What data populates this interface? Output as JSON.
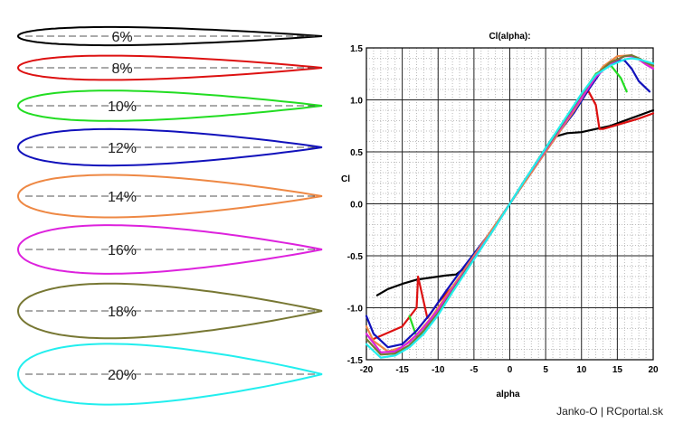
{
  "airfoils": [
    {
      "label": "6%",
      "thickness": 0.06,
      "color": "#000000"
    },
    {
      "label": "8%",
      "thickness": 0.08,
      "color": "#dd1111"
    },
    {
      "label": "10%",
      "thickness": 0.1,
      "color": "#22dd22"
    },
    {
      "label": "12%",
      "thickness": 0.12,
      "color": "#1111bb"
    },
    {
      "label": "14%",
      "thickness": 0.14,
      "color": "#ee8844"
    },
    {
      "label": "16%",
      "thickness": 0.16,
      "color": "#dd22dd"
    },
    {
      "label": "18%",
      "thickness": 0.18,
      "color": "#777733"
    },
    {
      "label": "20%",
      "thickness": 0.2,
      "color": "#22eeee"
    }
  ],
  "credit": "Janko-O | RCportal.sk",
  "chart_data": {
    "type": "line",
    "title": "Cl(alpha):",
    "xlabel": "alpha",
    "ylabel": "Cl",
    "xlim": [
      -20,
      20
    ],
    "ylim": [
      -1.5,
      1.5
    ],
    "xticks": [
      -20,
      -15,
      -10,
      -5,
      0,
      5,
      10,
      15,
      20
    ],
    "yticks": [
      -1.5,
      -1.0,
      -0.5,
      0.0,
      0.5,
      1.0,
      1.5
    ],
    "ytick_labels": [
      "-1.5",
      "-1.0",
      "-0.5",
      "0.0",
      "0.5",
      "1.0",
      "1.5"
    ],
    "grid": true,
    "series": [
      {
        "color": "#000000",
        "x": [
          -18.5,
          -17,
          -15,
          -13,
          -11,
          -9,
          -7.5,
          -6,
          -4,
          -2,
          0,
          2,
          4,
          6,
          8,
          10,
          12,
          14,
          16,
          18,
          20
        ],
        "y": [
          -0.88,
          -0.82,
          -0.77,
          -0.73,
          -0.71,
          -0.69,
          -0.68,
          -0.6,
          -0.42,
          -0.21,
          0.0,
          0.21,
          0.43,
          0.64,
          0.68,
          0.69,
          0.72,
          0.75,
          0.8,
          0.85,
          0.9
        ]
      },
      {
        "color": "#dd1111",
        "x": [
          -19,
          -17,
          -15,
          -13,
          -12.8,
          -11.5,
          -10,
          -8,
          -6,
          -4,
          -2,
          0,
          2,
          4,
          6,
          8,
          10,
          11,
          12,
          12.5,
          13,
          14,
          16,
          18,
          20
        ],
        "y": [
          -1.3,
          -1.24,
          -1.18,
          -1.0,
          -0.7,
          -1.1,
          -0.95,
          -0.8,
          -0.61,
          -0.42,
          -0.21,
          0.0,
          0.21,
          0.42,
          0.63,
          0.84,
          1.05,
          1.08,
          0.95,
          0.72,
          0.72,
          0.74,
          0.78,
          0.82,
          0.87
        ]
      },
      {
        "color": "#22dd22",
        "x": [
          -14,
          -13,
          -12,
          -10,
          -8,
          -6,
          -4,
          -2,
          0,
          2,
          4,
          6,
          8,
          10,
          12,
          14,
          15.5,
          16.3
        ],
        "y": [
          -1.08,
          -1.28,
          -1.25,
          -1.05,
          -0.82,
          -0.62,
          -0.42,
          -0.21,
          0.0,
          0.21,
          0.42,
          0.63,
          0.84,
          1.05,
          1.25,
          1.34,
          1.21,
          1.08
        ]
      },
      {
        "color": "#1111bb",
        "x": [
          -20,
          -19,
          -17,
          -15,
          -13,
          -11,
          -9,
          -7,
          -5,
          -3,
          -1,
          1,
          3,
          5,
          7,
          9,
          11,
          13,
          15,
          16,
          17,
          18,
          19.5
        ],
        "y": [
          -1.08,
          -1.25,
          -1.38,
          -1.35,
          -1.22,
          -1.05,
          -0.85,
          -0.66,
          -0.48,
          -0.3,
          -0.1,
          0.1,
          0.3,
          0.5,
          0.7,
          0.88,
          1.1,
          1.3,
          1.38,
          1.38,
          1.3,
          1.18,
          1.08
        ]
      },
      {
        "color": "#ee8844",
        "x": [
          -20,
          -19,
          -17,
          -15,
          -13,
          -11,
          -9,
          -7,
          -5,
          -3,
          -1,
          1,
          3,
          5,
          7,
          9,
          11,
          13,
          15,
          17,
          18,
          19,
          20
        ],
        "y": [
          -1.18,
          -1.32,
          -1.42,
          -1.38,
          -1.26,
          -1.1,
          -0.9,
          -0.7,
          -0.5,
          -0.3,
          -0.1,
          0.1,
          0.3,
          0.5,
          0.7,
          0.9,
          1.12,
          1.32,
          1.42,
          1.43,
          1.39,
          1.34,
          1.32
        ]
      },
      {
        "color": "#dd22dd",
        "x": [
          -20,
          -18,
          -16,
          -14,
          -12,
          -10,
          -8,
          -6,
          -4,
          -2,
          0,
          2,
          4,
          6,
          8,
          10,
          12,
          14,
          16,
          17,
          18,
          19,
          20
        ],
        "y": [
          -1.25,
          -1.43,
          -1.42,
          -1.33,
          -1.19,
          -1.02,
          -0.82,
          -0.62,
          -0.42,
          -0.22,
          0.0,
          0.22,
          0.42,
          0.62,
          0.82,
          1.02,
          1.22,
          1.35,
          1.42,
          1.42,
          1.39,
          1.34,
          1.3
        ]
      },
      {
        "color": "#777733",
        "x": [
          -20,
          -18,
          -16,
          -14,
          -12,
          -10,
          -8,
          -6,
          -4,
          -2,
          0,
          2,
          4,
          6,
          8,
          10,
          12,
          14,
          16,
          17,
          18,
          19,
          20
        ],
        "y": [
          -1.3,
          -1.45,
          -1.44,
          -1.36,
          -1.22,
          -1.05,
          -0.84,
          -0.63,
          -0.43,
          -0.22,
          0.0,
          0.22,
          0.43,
          0.63,
          0.84,
          1.05,
          1.24,
          1.36,
          1.42,
          1.43,
          1.4,
          1.36,
          1.33
        ]
      },
      {
        "color": "#22eeee",
        "x": [
          -20,
          -18,
          -16,
          -14,
          -12,
          -10,
          -8,
          -6,
          -4,
          -2,
          0,
          2,
          4,
          6,
          8,
          10,
          12,
          14,
          16,
          17,
          18,
          19,
          20
        ],
        "y": [
          -1.35,
          -1.48,
          -1.46,
          -1.38,
          -1.25,
          -1.07,
          -0.85,
          -0.64,
          -0.43,
          -0.22,
          0.0,
          0.22,
          0.43,
          0.64,
          0.85,
          1.06,
          1.24,
          1.33,
          1.39,
          1.4,
          1.39,
          1.37,
          1.35
        ]
      }
    ]
  }
}
